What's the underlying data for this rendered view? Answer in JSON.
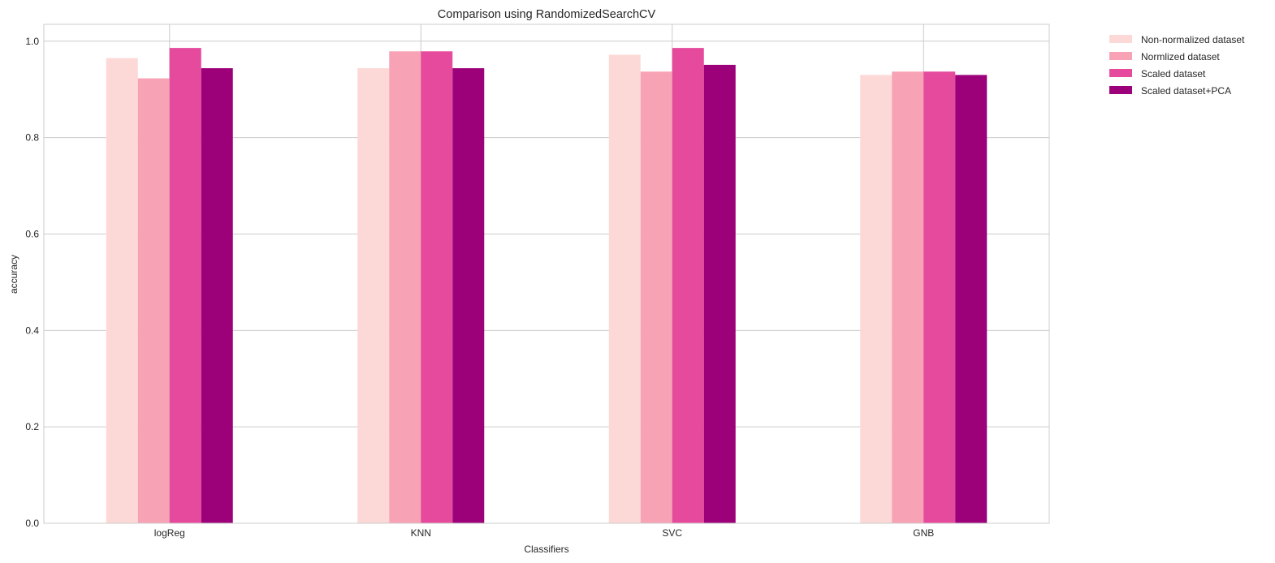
{
  "chart_data": {
    "type": "bar",
    "title": "Comparison using RandomizedSearchCV",
    "xlabel": "Classifiers",
    "ylabel": "accuracy",
    "categories": [
      "logReg",
      "KNN",
      "SVC",
      "GNB"
    ],
    "series": [
      {
        "name": "Non-normalized dataset",
        "color": "#fcd9d7",
        "values": [
          0.965,
          0.944,
          0.972,
          0.93
        ]
      },
      {
        "name": "Normlized dataset",
        "color": "#f8a2b6",
        "values": [
          0.923,
          0.979,
          0.937,
          0.937
        ]
      },
      {
        "name": "Scaled dataset",
        "color": "#e64a9c",
        "values": [
          0.986,
          0.979,
          0.986,
          0.937
        ]
      },
      {
        "name": "Scaled dataset+PCA",
        "color": "#9c017a",
        "values": [
          0.944,
          0.944,
          0.951,
          0.93
        ]
      }
    ],
    "ylim": [
      0,
      1.035
    ],
    "yticks": [
      0.0,
      0.2,
      0.4,
      0.6,
      0.8,
      1.0
    ],
    "ytick_labels": [
      "0.0",
      "0.2",
      "0.4",
      "0.6",
      "0.8",
      "1.0"
    ],
    "grid": true,
    "legend_position": "outside-top-right"
  }
}
